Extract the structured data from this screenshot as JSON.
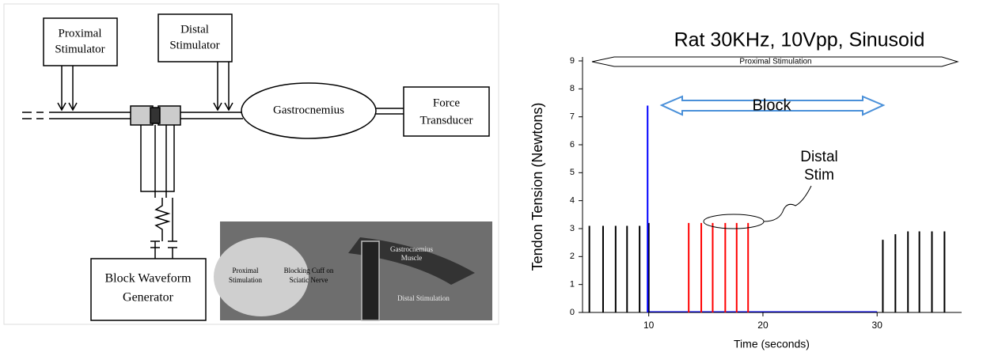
{
  "diagram": {
    "proximal_stimulator": [
      "Proximal",
      "Stimulator"
    ],
    "distal_stimulator": [
      "Distal",
      "Stimulator"
    ],
    "muscle": "Gastrocnemius",
    "force_transducer": [
      "Force",
      "Transducer"
    ],
    "block_generator": [
      "Block Waveform",
      "Generator"
    ],
    "photo_labels": {
      "proximal": [
        "Proximal",
        "Stimulation"
      ],
      "cuff": [
        "Blocking Cuff on",
        "Sciatic Nerve"
      ],
      "muscle": [
        "Gastrocnemius",
        "Muscle"
      ],
      "distal": "Distal Stimulation"
    }
  },
  "chart_data": {
    "type": "spike",
    "title": "Rat 30KHz, 10Vpp, Sinusoid",
    "x_label": "Time (seconds)",
    "y_label": "Tendon Tension (Newtons)",
    "annotations": {
      "proximal": "Proximal Stimulation",
      "block": "Block",
      "distal": [
        "Distal",
        "Stim"
      ]
    },
    "xlim": [
      4.2,
      37.4
    ],
    "ylim": [
      0,
      9
    ],
    "xticks": [
      10,
      20,
      30
    ],
    "yticks": [
      0,
      1,
      2,
      3,
      4,
      5,
      6,
      7,
      8,
      9
    ],
    "series": [
      {
        "color": "#000000",
        "x": [
          4.8,
          6.0,
          7.1,
          8.1,
          9.2,
          10.0
        ],
        "values": [
          3.1,
          3.1,
          3.1,
          3.1,
          3.1,
          3.2
        ]
      },
      {
        "color": "#0000ff",
        "x": [
          9.9
        ],
        "values": [
          7.4
        ]
      },
      {
        "color": "#ff0000",
        "x": [
          13.5,
          14.6,
          15.6,
          16.7,
          17.7,
          18.7
        ],
        "values": [
          3.2,
          3.2,
          3.2,
          3.2,
          3.2,
          3.2
        ]
      },
      {
        "color": "#000000",
        "x": [
          30.5,
          31.6,
          32.7,
          33.7,
          34.8,
          35.9
        ],
        "values": [
          2.6,
          2.8,
          2.9,
          2.9,
          2.9,
          2.9
        ]
      }
    ]
  }
}
